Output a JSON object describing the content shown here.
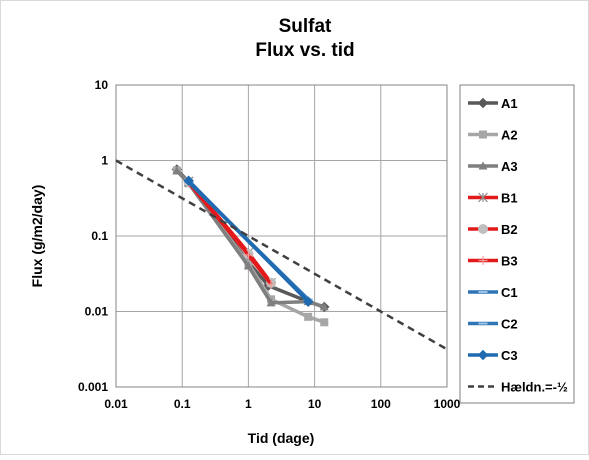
{
  "chart_data": {
    "type": "line",
    "title_line1": "Sulfat",
    "title_line2": "Flux vs. tid",
    "xlabel": "Tid (dage)",
    "ylabel": "Flux (g/m2/day)",
    "x_scale": "log",
    "y_scale": "log",
    "xlim": [
      0.01,
      1000
    ],
    "ylim": [
      0.001,
      10
    ],
    "x_ticks": [
      {
        "value": 0.01,
        "label": "0.01"
      },
      {
        "value": 0.1,
        "label": "0.1"
      },
      {
        "value": 1,
        "label": "1"
      },
      {
        "value": 10,
        "label": "10"
      },
      {
        "value": 100,
        "label": "100"
      },
      {
        "value": 1000,
        "label": "1000"
      }
    ],
    "y_ticks": [
      {
        "value": 0.001,
        "label": "0.001"
      },
      {
        "value": 0.01,
        "label": "0.01"
      },
      {
        "value": 0.1,
        "label": "0.1"
      },
      {
        "value": 1,
        "label": "1"
      },
      {
        "value": 10,
        "label": "10"
      }
    ],
    "grid": true,
    "legend_position": "right",
    "series": [
      {
        "name": "A1",
        "color": "#595959",
        "marker": "diamond",
        "dashed": false,
        "points": [
          [
            0.083,
            0.76
          ],
          [
            0.125,
            0.52
          ],
          [
            1.0,
            0.045
          ],
          [
            2.0,
            0.022
          ],
          [
            8.0,
            0.0135
          ],
          [
            14.0,
            0.0115
          ]
        ]
      },
      {
        "name": "A2",
        "color": "#a6a6a6",
        "marker": "square",
        "dashed": false,
        "points": [
          [
            0.083,
            0.74
          ],
          [
            0.125,
            0.5
          ],
          [
            1.0,
            0.043
          ],
          [
            2.2,
            0.0145
          ],
          [
            8.0,
            0.0085
          ],
          [
            14.0,
            0.0072
          ]
        ]
      },
      {
        "name": "A3",
        "color": "#7f7f7f",
        "marker": "triangle",
        "dashed": false,
        "points": [
          [
            0.083,
            0.73
          ],
          [
            0.125,
            0.5
          ],
          [
            1.0,
            0.04
          ],
          [
            2.2,
            0.013
          ],
          [
            8.0,
            0.0135
          ],
          [
            14.0,
            0.0115
          ]
        ]
      },
      {
        "name": "B1",
        "color": "#e31a1c",
        "marker": "star",
        "dashed": false,
        "points": [
          [
            0.125,
            0.53
          ],
          [
            1.0,
            0.06
          ],
          [
            2.2,
            0.024
          ]
        ]
      },
      {
        "name": "B2",
        "color": "#e31a1c",
        "marker": "circle",
        "dashed": false,
        "points": [
          [
            0.125,
            0.52
          ],
          [
            1.0,
            0.058
          ],
          [
            2.2,
            0.024
          ]
        ]
      },
      {
        "name": "B3",
        "color": "#e31a1c",
        "marker": "plus",
        "dashed": false,
        "points": [
          [
            0.125,
            0.51
          ],
          [
            1.0,
            0.056
          ],
          [
            2.2,
            0.023
          ]
        ]
      },
      {
        "name": "C1",
        "color": "#2e75b6",
        "marker": "dash",
        "dashed": false,
        "points": [
          [
            0.125,
            0.52
          ],
          [
            8.0,
            0.0145
          ]
        ]
      },
      {
        "name": "C2",
        "color": "#2e75b6",
        "marker": "dash",
        "dashed": false,
        "points": [
          [
            0.125,
            0.52
          ],
          [
            8.0,
            0.014
          ]
        ]
      },
      {
        "name": "C3",
        "color": "#1f6ab0",
        "marker": "diamond",
        "dashed": false,
        "points": [
          [
            0.125,
            0.54
          ],
          [
            8.0,
            0.0135
          ]
        ]
      },
      {
        "name": "Hældn.=-½",
        "color": "#404040",
        "marker": "none",
        "dashed": true,
        "points": [
          [
            0.01,
            1.0
          ],
          [
            1000,
            0.00316
          ]
        ]
      }
    ]
  }
}
